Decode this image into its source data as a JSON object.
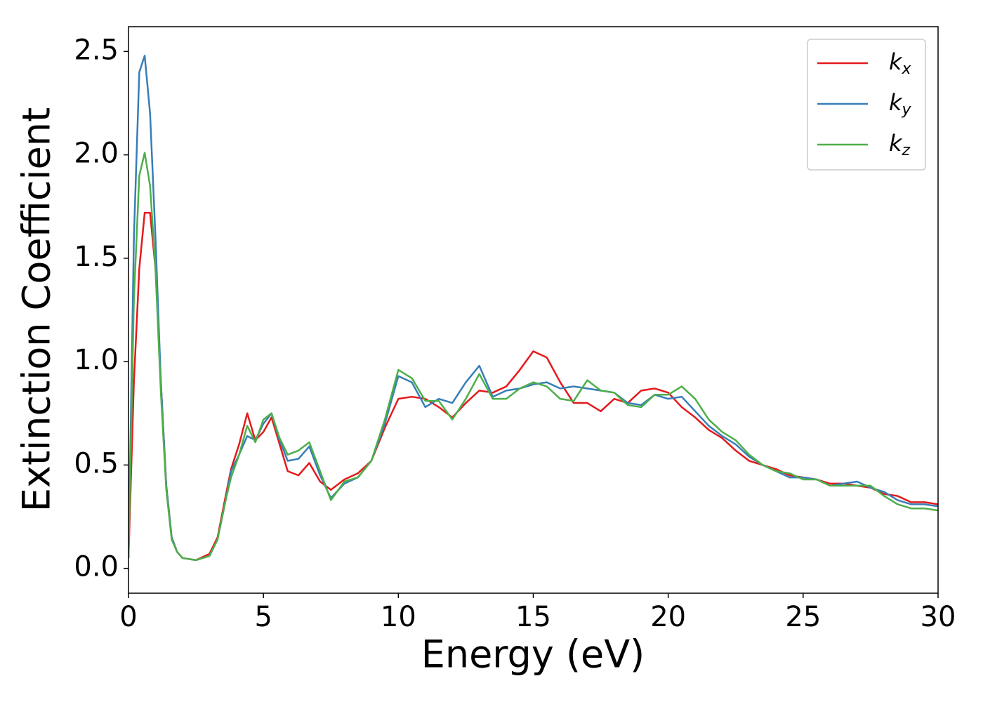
{
  "chart_data": {
    "type": "line",
    "xlabel": "Energy (eV)",
    "ylabel": "Extinction Coefficient",
    "xlim": [
      0,
      30
    ],
    "ylim": [
      -0.12,
      2.62
    ],
    "xticks": [
      0,
      5,
      10,
      15,
      20,
      25,
      30
    ],
    "yticks": [
      {
        "value": 0,
        "label": "0.0"
      },
      0.5,
      {
        "value": 1,
        "label": "1.0"
      },
      1.5,
      {
        "value": 2,
        "label": "2.0"
      },
      2.5
    ],
    "legend": "upper right",
    "x": [
      0,
      0.2,
      0.4,
      0.6,
      0.8,
      1.0,
      1.2,
      1.4,
      1.6,
      1.8,
      2.0,
      2.5,
      3.0,
      3.3,
      3.6,
      3.8,
      4.1,
      4.4,
      4.7,
      5.0,
      5.3,
      5.6,
      5.9,
      6.3,
      6.7,
      7.1,
      7.5,
      8.0,
      8.5,
      9.0,
      9.5,
      10.0,
      10.5,
      11.0,
      11.5,
      12.0,
      12.5,
      13.0,
      13.5,
      14.0,
      14.5,
      15.0,
      15.5,
      16.0,
      16.5,
      17.0,
      17.5,
      18.0,
      18.5,
      19.0,
      19.5,
      20.0,
      20.5,
      21.0,
      21.5,
      22.0,
      22.5,
      23.0,
      23.5,
      24.0,
      24.5,
      25.0,
      25.5,
      26.0,
      26.5,
      27.0,
      27.5,
      28.0,
      28.5,
      29.0,
      29.5,
      30.0
    ],
    "series": [
      {
        "name": "kx",
        "color": "#e41a1c",
        "values": [
          0.05,
          0.9,
          1.45,
          1.72,
          1.72,
          1.45,
          0.9,
          0.4,
          0.15,
          0.08,
          0.05,
          0.04,
          0.07,
          0.15,
          0.35,
          0.48,
          0.6,
          0.75,
          0.62,
          0.66,
          0.73,
          0.6,
          0.47,
          0.45,
          0.51,
          0.42,
          0.38,
          0.43,
          0.46,
          0.52,
          0.68,
          0.82,
          0.83,
          0.82,
          0.78,
          0.73,
          0.8,
          0.86,
          0.85,
          0.88,
          0.96,
          1.05,
          1.02,
          0.9,
          0.8,
          0.8,
          0.76,
          0.82,
          0.8,
          0.86,
          0.87,
          0.85,
          0.78,
          0.73,
          0.67,
          0.63,
          0.57,
          0.52,
          0.5,
          0.48,
          0.45,
          0.44,
          0.43,
          0.41,
          0.41,
          0.4,
          0.39,
          0.36,
          0.35,
          0.32,
          0.32,
          0.31
        ]
      },
      {
        "name": "ky",
        "color": "#377eb8",
        "values": [
          0.05,
          1.6,
          2.4,
          2.48,
          2.2,
          1.6,
          0.9,
          0.4,
          0.15,
          0.08,
          0.05,
          0.04,
          0.06,
          0.14,
          0.33,
          0.47,
          0.55,
          0.64,
          0.62,
          0.7,
          0.75,
          0.62,
          0.52,
          0.53,
          0.59,
          0.45,
          0.34,
          0.41,
          0.44,
          0.52,
          0.7,
          0.93,
          0.9,
          0.78,
          0.82,
          0.8,
          0.9,
          0.98,
          0.83,
          0.86,
          0.87,
          0.89,
          0.9,
          0.87,
          0.88,
          0.87,
          0.86,
          0.85,
          0.8,
          0.79,
          0.84,
          0.82,
          0.83,
          0.76,
          0.69,
          0.64,
          0.6,
          0.54,
          0.5,
          0.47,
          0.44,
          0.44,
          0.43,
          0.4,
          0.41,
          0.42,
          0.39,
          0.37,
          0.33,
          0.31,
          0.31,
          0.3
        ]
      },
      {
        "name": "kz",
        "color": "#4daf4a",
        "values": [
          0.05,
          1.3,
          1.9,
          2.01,
          1.85,
          1.45,
          0.85,
          0.38,
          0.14,
          0.08,
          0.05,
          0.04,
          0.06,
          0.14,
          0.33,
          0.44,
          0.55,
          0.69,
          0.61,
          0.72,
          0.75,
          0.63,
          0.55,
          0.57,
          0.61,
          0.47,
          0.33,
          0.42,
          0.44,
          0.52,
          0.72,
          0.96,
          0.92,
          0.81,
          0.81,
          0.72,
          0.82,
          0.94,
          0.82,
          0.82,
          0.87,
          0.9,
          0.88,
          0.82,
          0.81,
          0.91,
          0.86,
          0.85,
          0.79,
          0.78,
          0.84,
          0.84,
          0.88,
          0.82,
          0.72,
          0.66,
          0.62,
          0.55,
          0.5,
          0.47,
          0.46,
          0.43,
          0.43,
          0.4,
          0.4,
          0.4,
          0.4,
          0.35,
          0.31,
          0.29,
          0.29,
          0.28
        ]
      }
    ]
  }
}
